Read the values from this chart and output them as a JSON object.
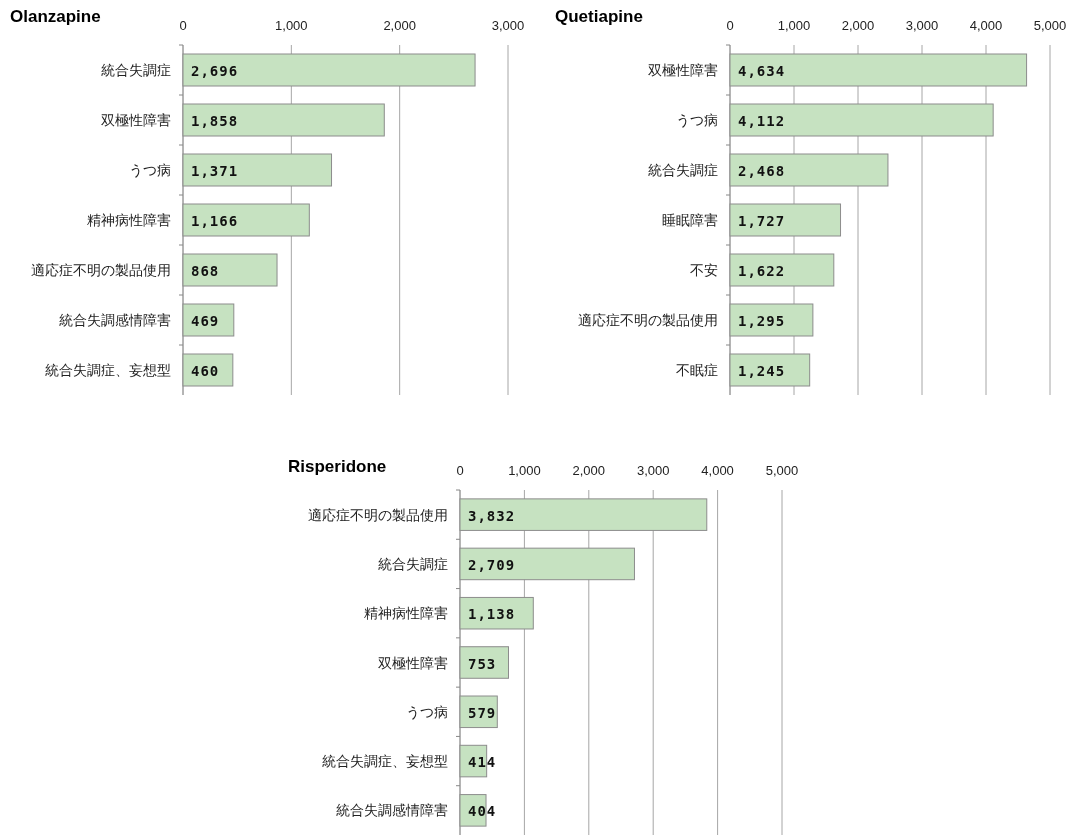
{
  "chart_data": [
    {
      "type": "bar",
      "orientation": "horizontal",
      "title": "Olanzapine",
      "categories": [
        "統合失調症",
        "双極性障害",
        "うつ病",
        "精神病性障害",
        "適応症不明の製品使用",
        "統合失調感情障害",
        "統合失調症、妄想型"
      ],
      "values": [
        2696,
        1858,
        1371,
        1166,
        868,
        469,
        460
      ],
      "value_labels": [
        "2,696",
        "1,858",
        "1,371",
        "1,166",
        "868",
        "469",
        "460"
      ],
      "color": "#c6e2c1",
      "xlim": [
        0,
        3000
      ],
      "xticks": [
        {
          "value": 0,
          "label": "0"
        },
        {
          "value": 1000,
          "label": "1,000"
        },
        {
          "value": 2000,
          "label": "2,000"
        },
        {
          "value": 3000,
          "label": "3,000"
        }
      ],
      "grid": "x"
    },
    {
      "type": "bar",
      "orientation": "horizontal",
      "title": "Quetiapine",
      "categories": [
        "双極性障害",
        "うつ病",
        "統合失調症",
        "睡眠障害",
        "不安",
        "適応症不明の製品使用",
        "不眠症"
      ],
      "values": [
        4634,
        4112,
        2468,
        1727,
        1622,
        1295,
        1245
      ],
      "value_labels": [
        "4,634",
        "4,112",
        "2,468",
        "1,727",
        "1,622",
        "1,295",
        "1,245"
      ],
      "color": "#c6e2c1",
      "xlim": [
        0,
        5000
      ],
      "xticks": [
        {
          "value": 0,
          "label": "0"
        },
        {
          "value": 1000,
          "label": "1,000"
        },
        {
          "value": 2000,
          "label": "2,000"
        },
        {
          "value": 3000,
          "label": "3,000"
        },
        {
          "value": 4000,
          "label": "4,000"
        },
        {
          "value": 5000,
          "label": "5,000"
        }
      ],
      "grid": "x"
    },
    {
      "type": "bar",
      "orientation": "horizontal",
      "title": "Risperidone",
      "categories": [
        "適応症不明の製品使用",
        "統合失調症",
        "精神病性障害",
        "双極性障害",
        "うつ病",
        "統合失調症、妄想型",
        "統合失調感情障害"
      ],
      "values": [
        3832,
        2709,
        1138,
        753,
        579,
        414,
        404
      ],
      "value_labels": [
        "3,832",
        "2,709",
        "1,138",
        "753",
        "579",
        "414",
        "404"
      ],
      "color": "#c6e2c1",
      "xlim": [
        0,
        5000
      ],
      "xticks": [
        {
          "value": 0,
          "label": "0"
        },
        {
          "value": 1000,
          "label": "1,000"
        },
        {
          "value": 2000,
          "label": "2,000"
        },
        {
          "value": 3000,
          "label": "3,000"
        },
        {
          "value": 4000,
          "label": "4,000"
        },
        {
          "value": 5000,
          "label": "5,000"
        }
      ],
      "grid": "x"
    }
  ]
}
